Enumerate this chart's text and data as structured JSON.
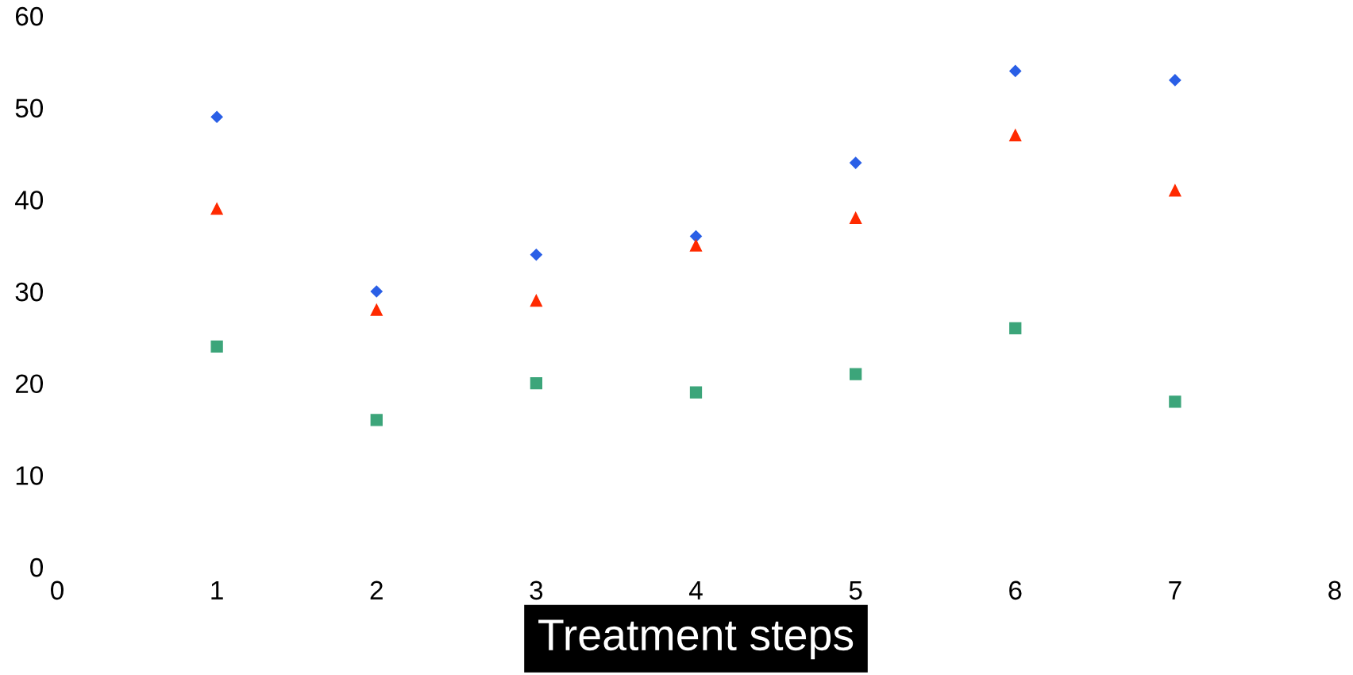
{
  "chart_data": {
    "type": "scatter",
    "xlabel": "Treatment steps",
    "x": [
      1,
      2,
      3,
      4,
      5,
      6,
      7
    ],
    "series": [
      {
        "color": "#2a5fe6",
        "marker": "diamond",
        "values": [
          49,
          30,
          34,
          36,
          44,
          54,
          53
        ]
      },
      {
        "color": "#ff2a00",
        "marker": "triangle",
        "values": [
          39,
          28,
          29,
          35,
          38,
          47,
          41
        ]
      },
      {
        "color": "#3ca57a",
        "marker": "square",
        "values": [
          24,
          16,
          20,
          19,
          21,
          26,
          18
        ]
      }
    ],
    "xlim": [
      0,
      8
    ],
    "xticks": [
      0,
      1,
      2,
      3,
      4,
      5,
      6,
      7,
      8
    ],
    "ylim": [
      0,
      60
    ],
    "yticks": [
      0,
      10,
      20,
      30,
      40,
      50,
      60
    ],
    "grid": false
  }
}
